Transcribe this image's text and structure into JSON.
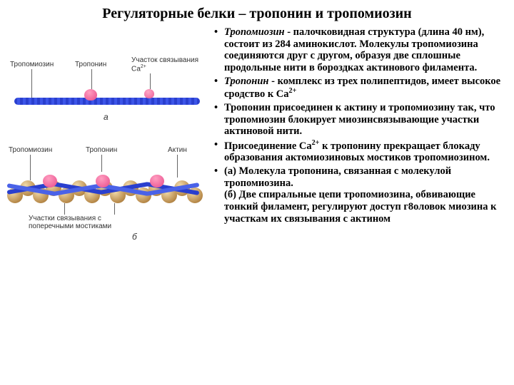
{
  "title": "Регуляторные белки – тропонин и тропомиозин",
  "bullets": [
    "<span class='italic'>Тропомиозин</span> - палочковидная структура (длина 40 нм), состоит из 284 аминокислот. Молекулы тропомиозина соединяются друг с другом, образуя две сплошные продольные нити в бороздках актинового филамента.",
    "<span class='italic'>Тропонин</span> - комплекс из трех полипептидов, имеет высокое сродство к Са<span class='sup'>2+</span>",
    "Тропонин присоединен к актину и тропомиозину так, что тропомиозин блокирует миозинсвязывающие участки актиновой нити.",
    "Присоединение Са<span class='sup'>2+</span> к тропонину прекращает блокаду образования актомиозиновых мостиков тропомиозином.",
    "(а)  Молекула тропонина, связанная с молекулой тропомиозина.<br>(б) Две спиральные цепи тропомиозина, обвивающие тонкий филамент, регулируют доступ г8оловок миозина к участкам их связывания с актином"
  ],
  "labels": {
    "tropomyosin": "Тропомиозин",
    "troponin": "Тропонин",
    "ca_site": "Участок связывания Са<span class='sup'>2+</span>",
    "actin": "Актин",
    "bridge_sites": "Участки связывания с поперечными мостиками",
    "a": "а",
    "b": "б"
  },
  "colors": {
    "actin": "#b88a4a",
    "tropomyosin": "#2a3fce",
    "troponin": "#e84a8a",
    "label": "#333333",
    "bg": "#ffffff"
  }
}
